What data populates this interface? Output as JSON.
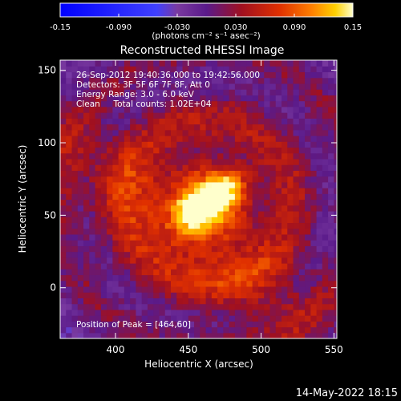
{
  "chart_data": [
    {
      "type": "colorbar",
      "range": [
        -0.15,
        0.15
      ],
      "tick_labels": [
        "-0.15",
        "-0.090",
        "-0.030",
        "0.030",
        "0.090",
        "0.15"
      ],
      "tick_values": [
        -0.15,
        -0.09,
        -0.03,
        0.03,
        0.09,
        0.15
      ],
      "unit_label": "(photons cm⁻² s⁻¹ asec⁻²)",
      "colors": [
        "#0000ff",
        "#ffffff",
        "#5a1a8a",
        "#b00000",
        "#ff5a00",
        "#ffd000",
        "#ffffcc"
      ]
    },
    {
      "type": "heatmap",
      "title": "Reconstructed RHESSI Image",
      "xlabel": "Heliocentric X (arcsec)",
      "ylabel": "Heliocentric Y (arcsec)",
      "xlim": [
        362,
        552
      ],
      "ylim": [
        -35,
        157
      ],
      "x_ticks": [
        400,
        450,
        500,
        550
      ],
      "y_ticks": [
        0,
        50,
        100,
        150
      ],
      "peak": {
        "x": 464,
        "y": 60
      },
      "background_color": "#4a2a8a",
      "annotations": [
        "26-Sep-2012 19:40:36.000 to 19:42:56.000",
        "Detectors: 3F 5F 6F 7F 8F, Att 0",
        "Energy Range: 3.0 - 6.0 keV",
        "Clean     Total counts: 1.02E+04"
      ],
      "peak_label": "Position of Peak = [464,60]"
    }
  ],
  "footer": {
    "timestamp": "14-May-2022 18:15"
  }
}
